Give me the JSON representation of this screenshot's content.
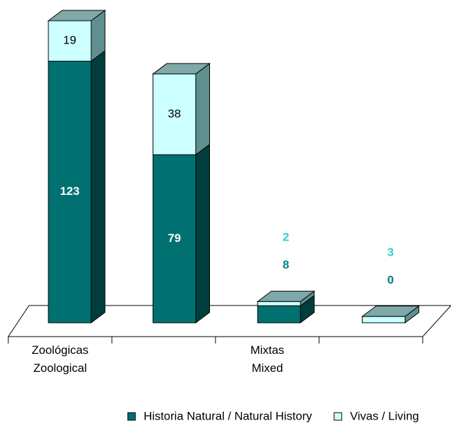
{
  "chart_data": {
    "type": "bar3d_stacked",
    "categories": [
      "Zoológicas\nZoological",
      null,
      "Mixtas\nMixed",
      null
    ],
    "series": [
      {
        "name": "Historia Natural / Natural History",
        "color": "#007070",
        "values": [
          123,
          79,
          8,
          0
        ]
      },
      {
        "name": "Vivas / Living",
        "color": "#ccffff",
        "values": [
          19,
          38,
          2,
          3
        ]
      }
    ],
    "legend": "bottom"
  }
}
